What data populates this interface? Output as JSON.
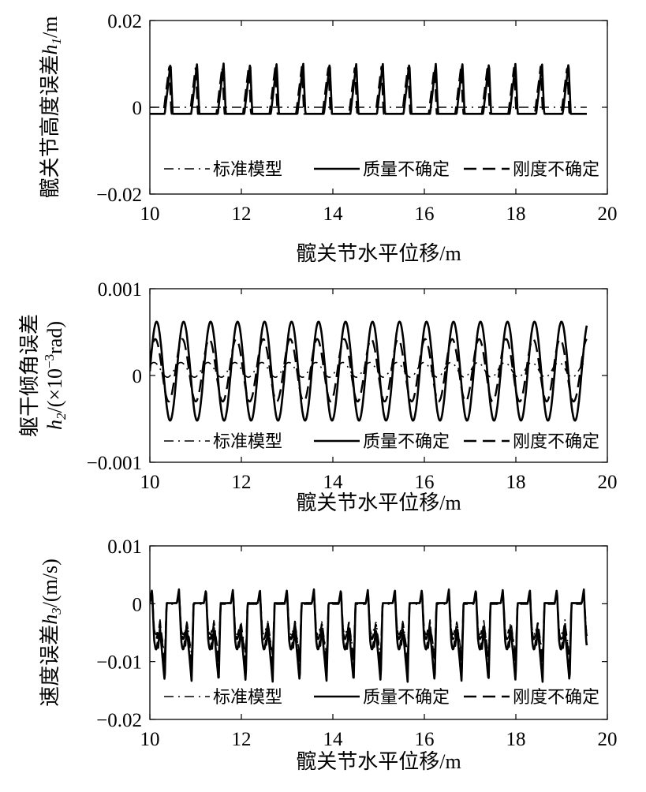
{
  "chart_data": [
    {
      "type": "line",
      "xlabel": "髋关节水平位移/m",
      "ylabel": "髋关节高度误差h1/m",
      "ylabel_parts": {
        "main": "髋关节高度误差",
        "sym": "h",
        "sub": "1",
        "post": "/m"
      },
      "xlim": [
        10,
        20
      ],
      "ylim": [
        -0.02,
        0.02
      ],
      "x_ticks": [
        10,
        12,
        14,
        16,
        18,
        20
      ],
      "y_ticks": [
        -0.02,
        0,
        0.02
      ],
      "x_tick_labels": [
        "10",
        "12",
        "14",
        "16",
        "18",
        "20"
      ],
      "y_tick_labels": [
        "−0.02",
        "0",
        "0.02"
      ],
      "grid": false,
      "legend_position": "lower-center",
      "gait": {
        "x_start": 10.0,
        "x_end": 19.55,
        "period": 0.58
      },
      "series": [
        {
          "name": "标准模型",
          "style": "dash-dot",
          "shape": "flat",
          "values_range": [
            0,
            0
          ],
          "offset": 0,
          "phase": 0.0,
          "peak_frac": 0.5,
          "points": [
            [
              10.0,
              0.0
            ],
            [
              19.55,
              0.0
            ]
          ]
        },
        {
          "name": "质量不确定",
          "style": "solid",
          "shape": "triangle",
          "values_range": [
            -0.0015,
            0.0102
          ],
          "offset": 0.0,
          "phase": 0.0,
          "peak_frac": 0.78
        },
        {
          "name": "刚度不确定",
          "style": "dashed",
          "shape": "triangle",
          "values_range": [
            -0.0015,
            0.0095
          ],
          "offset": 0.05,
          "phase": 0.0,
          "peak_frac": 0.78
        }
      ]
    },
    {
      "type": "line",
      "xlabel": "髋关节水平位移/m",
      "ylabel": "躯干倾角误差 h2/(×10^-3rad)",
      "ylabel_line1": "躯干倾角误差",
      "ylabel_parts": {
        "sym": "h",
        "sub": "2",
        "mid": "/(×10",
        "sup": "−3",
        "post": "rad)"
      },
      "xlim": [
        10,
        20
      ],
      "ylim": [
        -0.001,
        0.001
      ],
      "x_ticks": [
        10,
        12,
        14,
        16,
        18,
        20
      ],
      "y_ticks": [
        -0.001,
        0,
        0.001
      ],
      "x_tick_labels": [
        "10",
        "12",
        "14",
        "16",
        "18",
        "20"
      ],
      "y_tick_labels": [
        "−0.001",
        "0",
        "0.001"
      ],
      "grid": false,
      "legend_position": "lower-center",
      "gait": {
        "x_start": 10.0,
        "x_end": 19.55,
        "period": 0.59
      },
      "series": [
        {
          "name": "标准模型",
          "style": "dash-dot",
          "shape": "sine",
          "values_range": [
            -2e-05,
            0.00015
          ],
          "offset": 0.0,
          "phase": 0.1
        },
        {
          "name": "质量不确定",
          "style": "solid",
          "shape": "sine",
          "values_range": [
            -0.00052,
            0.00062
          ],
          "offset": 0.0,
          "phase": 0.0
        },
        {
          "name": "刚度不确定",
          "style": "dashed",
          "shape": "sine",
          "values_range": [
            -0.0003,
            0.00042
          ],
          "offset": 0.0,
          "phase": 0.05
        }
      ]
    },
    {
      "type": "line",
      "xlabel": "髋关节水平位移/m",
      "ylabel": "速度误差h3/(m/s)",
      "ylabel_parts": {
        "main": "速度误差",
        "sym": "h",
        "sub": "3",
        "post": "/(m/s)"
      },
      "xlim": [
        10,
        20
      ],
      "ylim": [
        -0.02,
        0.01
      ],
      "x_ticks": [
        10,
        12,
        14,
        16,
        18,
        20
      ],
      "y_ticks": [
        -0.02,
        -0.01,
        0,
        0.01
      ],
      "x_tick_labels": [
        "10",
        "12",
        "14",
        "16",
        "18",
        "20"
      ],
      "y_tick_labels": [
        "−0.02",
        "−0.01",
        "0",
        "0.01"
      ],
      "grid": false,
      "legend_position": "lower-center",
      "gait": {
        "x_start": 10.0,
        "x_end": 19.55,
        "period": 0.59
      },
      "series": [
        {
          "name": "标准模型",
          "style": "dash-dot",
          "shape": "velocity",
          "values_range": [
            -0.009,
            0.0015
          ],
          "offset": 0.0,
          "phase": 0.0
        },
        {
          "name": "质量不确定",
          "style": "solid",
          "shape": "velocity",
          "values_range": [
            -0.0135,
            0.0025
          ],
          "offset": 0.0,
          "phase": 0.0
        },
        {
          "name": "刚度不确定",
          "style": "dashed",
          "shape": "velocity",
          "values_range": [
            -0.0105,
            0.002
          ],
          "offset": 0.0,
          "phase": 0.0
        }
      ]
    }
  ]
}
